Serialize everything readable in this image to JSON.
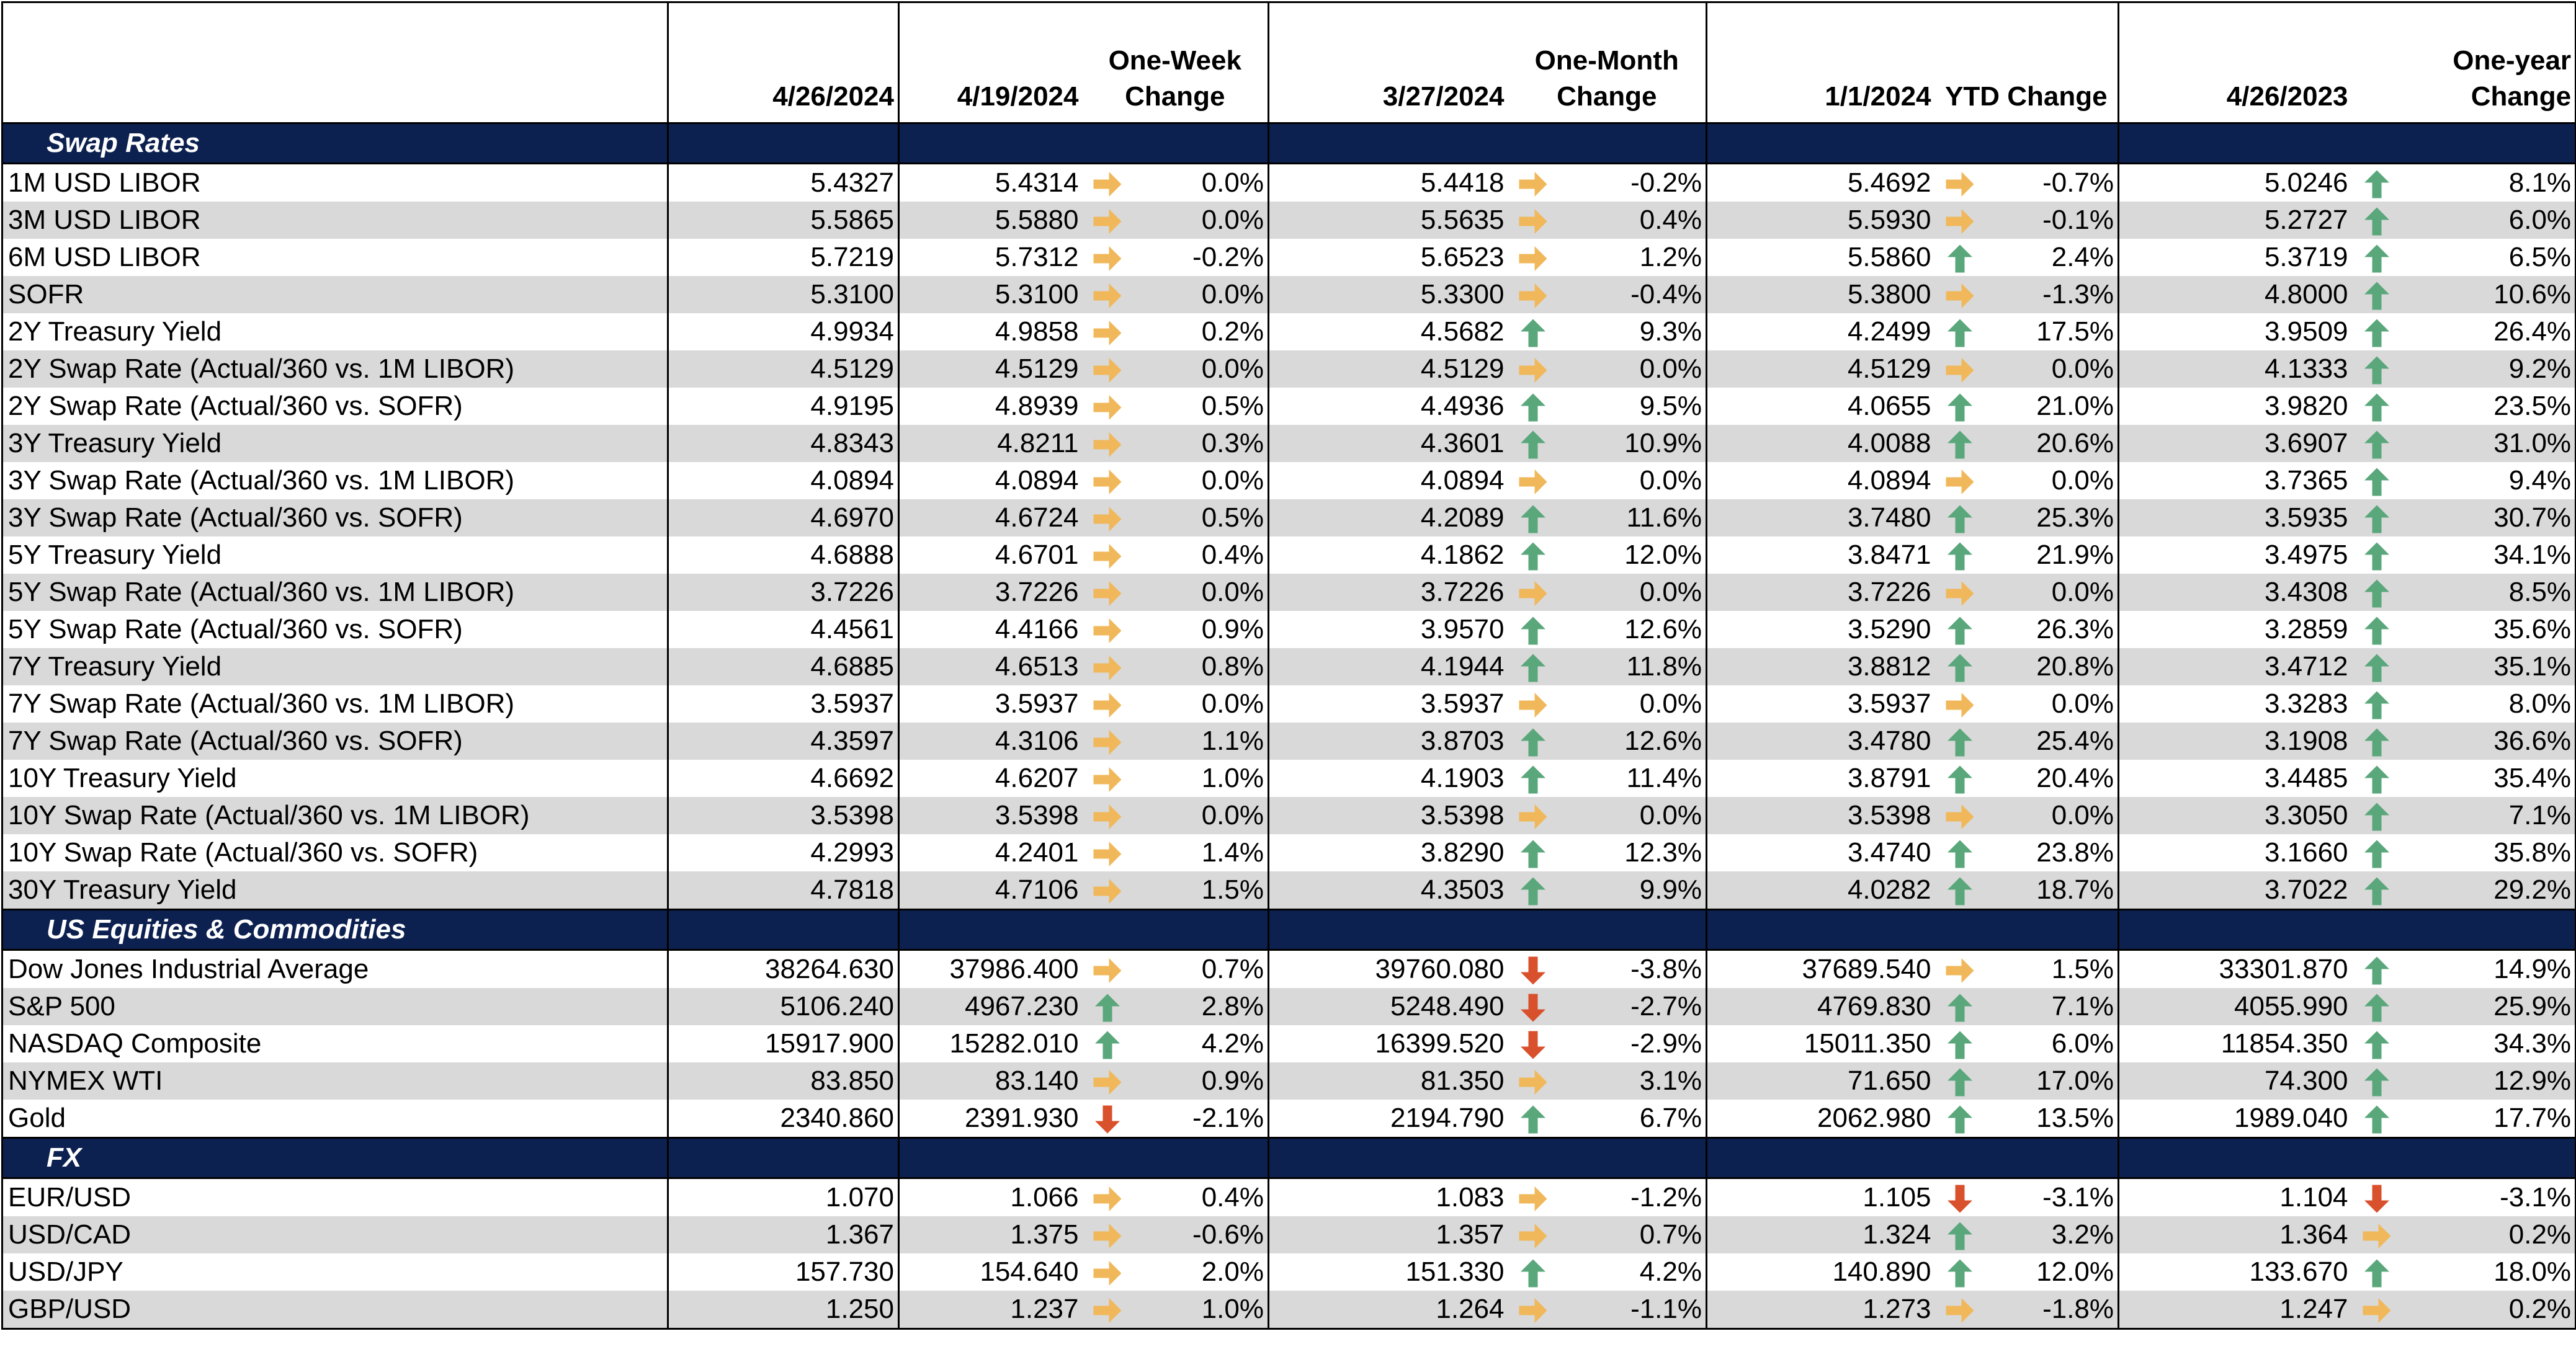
{
  "header": {
    "d1": "4/26/2024",
    "d2": "4/19/2024",
    "c2": [
      "One-Week",
      "Change"
    ],
    "d3": "3/27/2024",
    "c3": [
      "One-Month",
      "Change"
    ],
    "d4": "1/1/2024",
    "c4": "YTD Change",
    "d5": "4/26/2023",
    "c5": [
      "One-year",
      "Change"
    ]
  },
  "colors": {
    "section_bg": "#0d2150",
    "alt_row": "#d9d9d9",
    "up": "#5aa77b",
    "flat": "#f0b85a",
    "down": "#d9502c"
  },
  "sections": [
    {
      "title": "Swap Rates",
      "rows": [
        {
          "name": "1M USD LIBOR",
          "v1": "5.4327",
          "v2": "5.4314",
          "a2": "flat",
          "p2": "0.0%",
          "v3": "5.4418",
          "a3": "flat",
          "p3": "-0.2%",
          "v4": "5.4692",
          "a4": "flat",
          "p4": "-0.7%",
          "v5": "5.0246",
          "a5": "up",
          "p5": "8.1%"
        },
        {
          "name": "3M USD LIBOR",
          "v1": "5.5865",
          "v2": "5.5880",
          "a2": "flat",
          "p2": "0.0%",
          "v3": "5.5635",
          "a3": "flat",
          "p3": "0.4%",
          "v4": "5.5930",
          "a4": "flat",
          "p4": "-0.1%",
          "v5": "5.2727",
          "a5": "up",
          "p5": "6.0%"
        },
        {
          "name": "6M USD LIBOR",
          "v1": "5.7219",
          "v2": "5.7312",
          "a2": "flat",
          "p2": "-0.2%",
          "v3": "5.6523",
          "a3": "flat",
          "p3": "1.2%",
          "v4": "5.5860",
          "a4": "up",
          "p4": "2.4%",
          "v5": "5.3719",
          "a5": "up",
          "p5": "6.5%"
        },
        {
          "name": "SOFR",
          "v1": "5.3100",
          "v2": "5.3100",
          "a2": "flat",
          "p2": "0.0%",
          "v3": "5.3300",
          "a3": "flat",
          "p3": "-0.4%",
          "v4": "5.3800",
          "a4": "flat",
          "p4": "-1.3%",
          "v5": "4.8000",
          "a5": "up",
          "p5": "10.6%"
        },
        {
          "name": "2Y Treasury Yield",
          "v1": "4.9934",
          "v2": "4.9858",
          "a2": "flat",
          "p2": "0.2%",
          "v3": "4.5682",
          "a3": "up",
          "p3": "9.3%",
          "v4": "4.2499",
          "a4": "up",
          "p4": "17.5%",
          "v5": "3.9509",
          "a5": "up",
          "p5": "26.4%"
        },
        {
          "name": "2Y Swap Rate (Actual/360 vs. 1M LIBOR)",
          "v1": "4.5129",
          "v2": "4.5129",
          "a2": "flat",
          "p2": "0.0%",
          "v3": "4.5129",
          "a3": "flat",
          "p3": "0.0%",
          "v4": "4.5129",
          "a4": "flat",
          "p4": "0.0%",
          "v5": "4.1333",
          "a5": "up",
          "p5": "9.2%"
        },
        {
          "name": "2Y Swap Rate (Actual/360 vs. SOFR)",
          "v1": "4.9195",
          "v2": "4.8939",
          "a2": "flat",
          "p2": "0.5%",
          "v3": "4.4936",
          "a3": "up",
          "p3": "9.5%",
          "v4": "4.0655",
          "a4": "up",
          "p4": "21.0%",
          "v5": "3.9820",
          "a5": "up",
          "p5": "23.5%"
        },
        {
          "name": "3Y Treasury Yield",
          "v1": "4.8343",
          "v2": "4.8211",
          "a2": "flat",
          "p2": "0.3%",
          "v3": "4.3601",
          "a3": "up",
          "p3": "10.9%",
          "v4": "4.0088",
          "a4": "up",
          "p4": "20.6%",
          "v5": "3.6907",
          "a5": "up",
          "p5": "31.0%"
        },
        {
          "name": "3Y Swap Rate (Actual/360 vs. 1M LIBOR)",
          "v1": "4.0894",
          "v2": "4.0894",
          "a2": "flat",
          "p2": "0.0%",
          "v3": "4.0894",
          "a3": "flat",
          "p3": "0.0%",
          "v4": "4.0894",
          "a4": "flat",
          "p4": "0.0%",
          "v5": "3.7365",
          "a5": "up",
          "p5": "9.4%"
        },
        {
          "name": "3Y Swap Rate (Actual/360 vs. SOFR)",
          "v1": "4.6970",
          "v2": "4.6724",
          "a2": "flat",
          "p2": "0.5%",
          "v3": "4.2089",
          "a3": "up",
          "p3": "11.6%",
          "v4": "3.7480",
          "a4": "up",
          "p4": "25.3%",
          "v5": "3.5935",
          "a5": "up",
          "p5": "30.7%"
        },
        {
          "name": "5Y Treasury Yield",
          "v1": "4.6888",
          "v2": "4.6701",
          "a2": "flat",
          "p2": "0.4%",
          "v3": "4.1862",
          "a3": "up",
          "p3": "12.0%",
          "v4": "3.8471",
          "a4": "up",
          "p4": "21.9%",
          "v5": "3.4975",
          "a5": "up",
          "p5": "34.1%"
        },
        {
          "name": "5Y Swap Rate (Actual/360 vs. 1M LIBOR)",
          "v1": "3.7226",
          "v2": "3.7226",
          "a2": "flat",
          "p2": "0.0%",
          "v3": "3.7226",
          "a3": "flat",
          "p3": "0.0%",
          "v4": "3.7226",
          "a4": "flat",
          "p4": "0.0%",
          "v5": "3.4308",
          "a5": "up",
          "p5": "8.5%"
        },
        {
          "name": "5Y Swap Rate (Actual/360 vs. SOFR)",
          "v1": "4.4561",
          "v2": "4.4166",
          "a2": "flat",
          "p2": "0.9%",
          "v3": "3.9570",
          "a3": "up",
          "p3": "12.6%",
          "v4": "3.5290",
          "a4": "up",
          "p4": "26.3%",
          "v5": "3.2859",
          "a5": "up",
          "p5": "35.6%"
        },
        {
          "name": "7Y Treasury Yield",
          "v1": "4.6885",
          "v2": "4.6513",
          "a2": "flat",
          "p2": "0.8%",
          "v3": "4.1944",
          "a3": "up",
          "p3": "11.8%",
          "v4": "3.8812",
          "a4": "up",
          "p4": "20.8%",
          "v5": "3.4712",
          "a5": "up",
          "p5": "35.1%"
        },
        {
          "name": "7Y Swap Rate (Actual/360 vs. 1M LIBOR)",
          "v1": "3.5937",
          "v2": "3.5937",
          "a2": "flat",
          "p2": "0.0%",
          "v3": "3.5937",
          "a3": "flat",
          "p3": "0.0%",
          "v4": "3.5937",
          "a4": "flat",
          "p4": "0.0%",
          "v5": "3.3283",
          "a5": "up",
          "p5": "8.0%"
        },
        {
          "name": "7Y Swap Rate (Actual/360 vs. SOFR)",
          "v1": "4.3597",
          "v2": "4.3106",
          "a2": "flat",
          "p2": "1.1%",
          "v3": "3.8703",
          "a3": "up",
          "p3": "12.6%",
          "v4": "3.4780",
          "a4": "up",
          "p4": "25.4%",
          "v5": "3.1908",
          "a5": "up",
          "p5": "36.6%"
        },
        {
          "name": "10Y Treasury Yield",
          "v1": "4.6692",
          "v2": "4.6207",
          "a2": "flat",
          "p2": "1.0%",
          "v3": "4.1903",
          "a3": "up",
          "p3": "11.4%",
          "v4": "3.8791",
          "a4": "up",
          "p4": "20.4%",
          "v5": "3.4485",
          "a5": "up",
          "p5": "35.4%"
        },
        {
          "name": "10Y Swap Rate (Actual/360 vs. 1M LIBOR)",
          "v1": "3.5398",
          "v2": "3.5398",
          "a2": "flat",
          "p2": "0.0%",
          "v3": "3.5398",
          "a3": "flat",
          "p3": "0.0%",
          "v4": "3.5398",
          "a4": "flat",
          "p4": "0.0%",
          "v5": "3.3050",
          "a5": "up",
          "p5": "7.1%"
        },
        {
          "name": "10Y Swap Rate (Actual/360 vs. SOFR)",
          "v1": "4.2993",
          "v2": "4.2401",
          "a2": "flat",
          "p2": "1.4%",
          "v3": "3.8290",
          "a3": "up",
          "p3": "12.3%",
          "v4": "3.4740",
          "a4": "up",
          "p4": "23.8%",
          "v5": "3.1660",
          "a5": "up",
          "p5": "35.8%"
        },
        {
          "name": "30Y Treasury Yield",
          "v1": "4.7818",
          "v2": "4.7106",
          "a2": "flat",
          "p2": "1.5%",
          "v3": "4.3503",
          "a3": "up",
          "p3": "9.9%",
          "v4": "4.0282",
          "a4": "up",
          "p4": "18.7%",
          "v5": "3.7022",
          "a5": "up",
          "p5": "29.2%"
        }
      ]
    },
    {
      "title": "US Equities & Commodities",
      "rows": [
        {
          "name": "Dow Jones Industrial Average",
          "v1": "38264.630",
          "v2": "37986.400",
          "a2": "flat",
          "p2": "0.7%",
          "v3": "39760.080",
          "a3": "down",
          "p3": "-3.8%",
          "v4": "37689.540",
          "a4": "flat",
          "p4": "1.5%",
          "v5": "33301.870",
          "a5": "up",
          "p5": "14.9%"
        },
        {
          "name": "S&P 500",
          "v1": "5106.240",
          "v2": "4967.230",
          "a2": "up",
          "p2": "2.8%",
          "v3": "5248.490",
          "a3": "down",
          "p3": "-2.7%",
          "v4": "4769.830",
          "a4": "up",
          "p4": "7.1%",
          "v5": "4055.990",
          "a5": "up",
          "p5": "25.9%"
        },
        {
          "name": "NASDAQ Composite",
          "v1": "15917.900",
          "v2": "15282.010",
          "a2": "up",
          "p2": "4.2%",
          "v3": "16399.520",
          "a3": "down",
          "p3": "-2.9%",
          "v4": "15011.350",
          "a4": "up",
          "p4": "6.0%",
          "v5": "11854.350",
          "a5": "up",
          "p5": "34.3%"
        },
        {
          "name": "NYMEX WTI",
          "v1": "83.850",
          "v2": "83.140",
          "a2": "flat",
          "p2": "0.9%",
          "v3": "81.350",
          "a3": "flat",
          "p3": "3.1%",
          "v4": "71.650",
          "a4": "up",
          "p4": "17.0%",
          "v5": "74.300",
          "a5": "up",
          "p5": "12.9%"
        },
        {
          "name": "Gold",
          "v1": "2340.860",
          "v2": "2391.930",
          "a2": "down",
          "p2": "-2.1%",
          "v3": "2194.790",
          "a3": "up",
          "p3": "6.7%",
          "v4": "2062.980",
          "a4": "up",
          "p4": "13.5%",
          "v5": "1989.040",
          "a5": "up",
          "p5": "17.7%"
        }
      ]
    },
    {
      "title": "FX",
      "rows": [
        {
          "name": "EUR/USD",
          "v1": "1.070",
          "v2": "1.066",
          "a2": "flat",
          "p2": "0.4%",
          "v3": "1.083",
          "a3": "flat",
          "p3": "-1.2%",
          "v4": "1.105",
          "a4": "down",
          "p4": "-3.1%",
          "v5": "1.104",
          "a5": "down",
          "p5": "-3.1%"
        },
        {
          "name": "USD/CAD",
          "v1": "1.367",
          "v2": "1.375",
          "a2": "flat",
          "p2": "-0.6%",
          "v3": "1.357",
          "a3": "flat",
          "p3": "0.7%",
          "v4": "1.324",
          "a4": "up",
          "p4": "3.2%",
          "v5": "1.364",
          "a5": "flat",
          "p5": "0.2%"
        },
        {
          "name": "USD/JPY",
          "v1": "157.730",
          "v2": "154.640",
          "a2": "flat",
          "p2": "2.0%",
          "v3": "151.330",
          "a3": "up",
          "p3": "4.2%",
          "v4": "140.890",
          "a4": "up",
          "p4": "12.0%",
          "v5": "133.670",
          "a5": "up",
          "p5": "18.0%"
        },
        {
          "name": "GBP/USD",
          "v1": "1.250",
          "v2": "1.237",
          "a2": "flat",
          "p2": "1.0%",
          "v3": "1.264",
          "a3": "flat",
          "p3": "-1.1%",
          "v4": "1.273",
          "a4": "flat",
          "p4": "-1.8%",
          "v5": "1.247",
          "a5": "flat",
          "p5": "0.2%"
        }
      ]
    }
  ]
}
